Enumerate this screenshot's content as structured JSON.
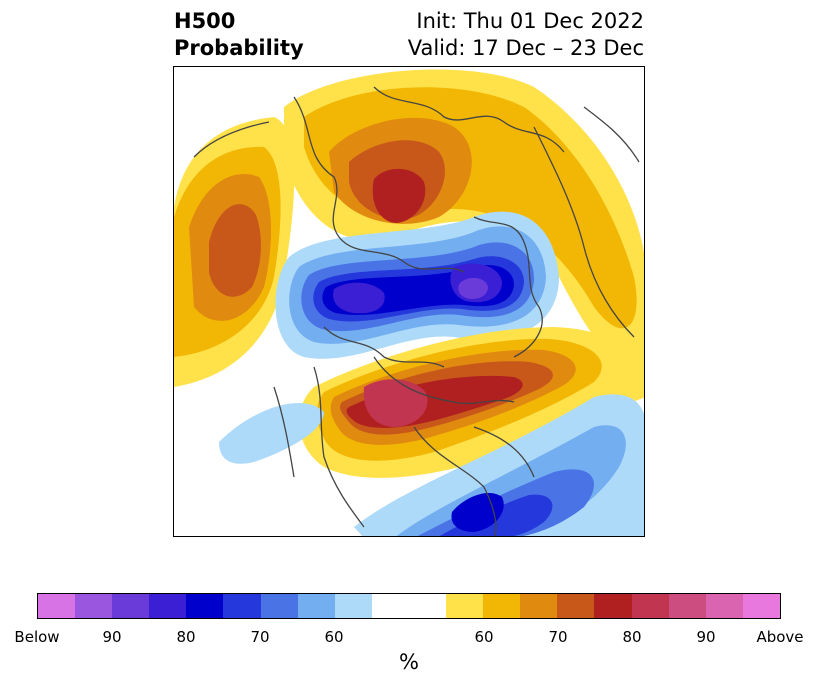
{
  "title": {
    "left_line1": "H500",
    "left_line2": "Probability",
    "right_line1": "Init: Thu 01 Dec 2022",
    "right_line2": "Valid: 17 Dec – 23 Dec"
  },
  "colorbar": {
    "unit": "%",
    "colors": [
      "#d873e6",
      "#9b56e0",
      "#6b3bd9",
      "#3a1fd4",
      "#0000cc",
      "#2438dc",
      "#4a74e6",
      "#73aef0",
      "#aedaf9",
      "#ffffff",
      "#ffe14a",
      "#f2b705",
      "#e08a10",
      "#c8581a",
      "#b02020",
      "#c23550",
      "#cc4d80",
      "#db64b0",
      "#e878dd"
    ],
    "labels": [
      "Below",
      "90",
      "80",
      "70",
      "60",
      "60",
      "70",
      "80",
      "90",
      "Above"
    ]
  },
  "colors": {
    "land_lines": "#444444",
    "background": "#ffffff"
  }
}
